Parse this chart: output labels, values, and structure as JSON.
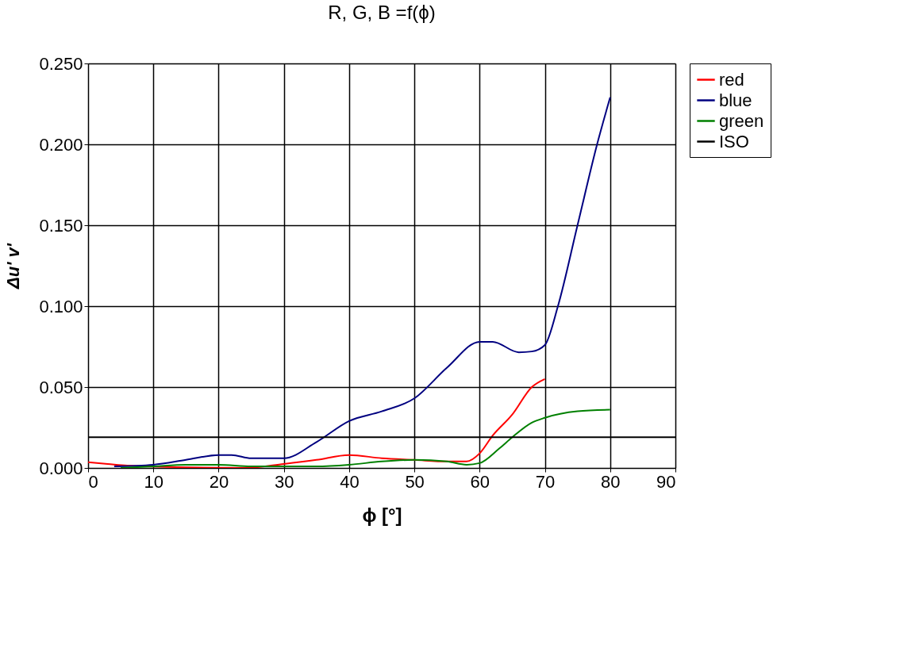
{
  "chart_data": {
    "type": "line",
    "title": "R, G, B =f(ϕ)",
    "xlabel": "ϕ [°]",
    "ylabel": "Δu' v'",
    "xlim": [
      0,
      90
    ],
    "xticks": [
      0,
      10,
      20,
      30,
      40,
      50,
      60,
      70,
      80,
      90
    ],
    "ylim": [
      0,
      0.25
    ],
    "yticks": [
      {
        "value": 0,
        "label": "0.000"
      },
      {
        "value": 0.05,
        "label": "0.050"
      },
      {
        "value": 0.1,
        "label": "0.100"
      },
      {
        "value": 0.15,
        "label": "0.150"
      },
      {
        "value": 0.2,
        "label": "0.200"
      },
      {
        "value": 0.25,
        "label": "0.250"
      }
    ],
    "grid": true,
    "legend": "right",
    "series": [
      {
        "name": "red",
        "color": "#ff0000",
        "x": [
          0,
          3,
          6,
          24,
          30,
          35,
          40,
          45,
          50,
          55,
          58,
          60,
          62,
          65,
          68,
          70
        ],
        "values": [
          0.0035,
          0.0025,
          0.0015,
          0.0,
          0.0025,
          0.005,
          0.008,
          0.006,
          0.005,
          0.004,
          0.004,
          0.009,
          0.02,
          0.033,
          0.05,
          0.055
        ]
      },
      {
        "name": "blue",
        "color": "#000080",
        "x": [
          4,
          10,
          15,
          20,
          22,
          25,
          30,
          35,
          40,
          45,
          50,
          55,
          60,
          62,
          66,
          68,
          70,
          72,
          75,
          78,
          80
        ],
        "values": [
          0.001,
          0.002,
          0.005,
          0.008,
          0.008,
          0.006,
          0.006,
          0.016,
          0.029,
          0.035,
          0.043,
          0.062,
          0.078,
          0.078,
          0.0715,
          0.072,
          0.076,
          0.1,
          0.15,
          0.2,
          0.229
        ]
      },
      {
        "name": "green",
        "color": "#008000",
        "x": [
          5,
          10,
          15,
          20,
          25,
          30,
          35,
          40,
          45,
          50,
          55,
          58,
          60,
          63,
          65,
          68,
          70,
          75,
          80
        ],
        "values": [
          0.0,
          0.001,
          0.002,
          0.002,
          0.001,
          0.001,
          0.001,
          0.002,
          0.004,
          0.005,
          0.004,
          0.002,
          0.003,
          0.012,
          0.019,
          0.028,
          0.031,
          0.035,
          0.036
        ]
      },
      {
        "name": "ISO",
        "color": "#000000",
        "x": [
          0,
          90
        ],
        "values": [
          0.019,
          0.019
        ]
      }
    ]
  }
}
